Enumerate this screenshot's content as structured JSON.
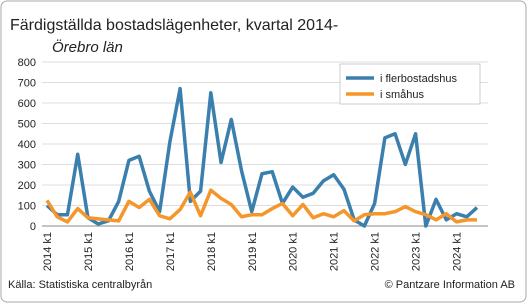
{
  "chart_data": {
    "type": "line",
    "title": "Färdigställda bostadslägenheter, kvartal 2014-",
    "subtitle": "Örebro län",
    "categories": [
      "2014 k1",
      null,
      null,
      null,
      "2015 k1",
      null,
      null,
      null,
      "2016 k1",
      null,
      null,
      null,
      "2017 k1",
      null,
      null,
      null,
      "2018 k1",
      null,
      null,
      null,
      "2019 k1",
      null,
      null,
      null,
      "2020 k1",
      null,
      null,
      null,
      "2021 k1",
      null,
      null,
      null,
      "2022 k1",
      null,
      null,
      null,
      "2023 k1",
      null,
      null,
      null,
      "2024 k1",
      null,
      null
    ],
    "series": [
      {
        "name": "i flerbostadshus",
        "color": "#3a7fad",
        "values": [
          100,
          55,
          55,
          350,
          40,
          10,
          25,
          120,
          320,
          340,
          170,
          70,
          410,
          670,
          120,
          170,
          650,
          310,
          520,
          270,
          70,
          255,
          265,
          110,
          190,
          140,
          160,
          220,
          250,
          180,
          30,
          0,
          110,
          430,
          450,
          300,
          450,
          0,
          130,
          30,
          60,
          45,
          90
        ]
      },
      {
        "name": "i småhus",
        "color": "#f5962a",
        "values": [
          125,
          45,
          20,
          85,
          40,
          35,
          30,
          25,
          120,
          90,
          130,
          50,
          35,
          80,
          165,
          50,
          175,
          135,
          105,
          45,
          55,
          55,
          85,
          110,
          50,
          105,
          40,
          60,
          45,
          75,
          25,
          55,
          60,
          60,
          70,
          95,
          70,
          55,
          30,
          60,
          20,
          30,
          30
        ]
      }
    ],
    "ylim": [
      0,
      800
    ],
    "yticks": [
      0,
      100,
      200,
      300,
      400,
      500,
      600,
      700,
      800
    ],
    "grid": true,
    "legend": "upper right",
    "source": "Källa: Statistiska centralbyrån",
    "credit": "© Pantzare Information AB"
  }
}
